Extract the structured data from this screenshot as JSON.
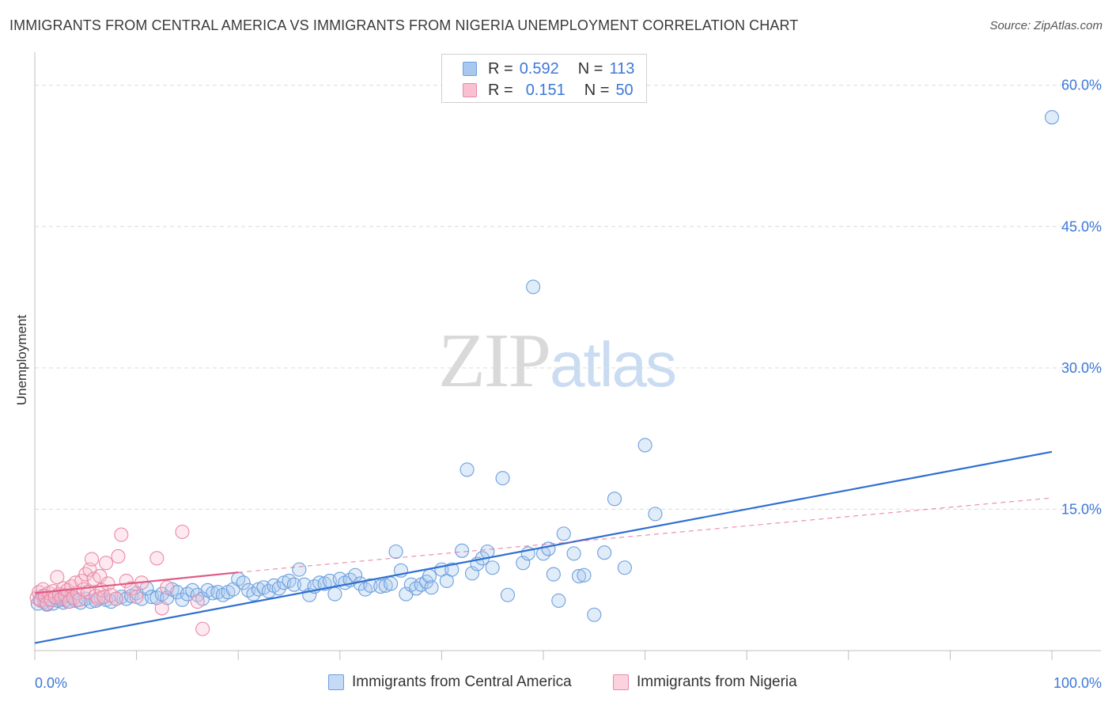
{
  "title": "IMMIGRANTS FROM CENTRAL AMERICA VS IMMIGRANTS FROM NIGERIA UNEMPLOYMENT CORRELATION CHART",
  "source": "Source: ZipAtlas.com",
  "watermark": {
    "zip": "ZIP",
    "atlas": "atlas"
  },
  "legend": {
    "rows": [
      {
        "r_label": "R =",
        "r_value": "0.592",
        "n_label": "N =",
        "n_value": "113",
        "color": "#a8c8ee",
        "border": "#6b9fe0"
      },
      {
        "r_label": "R =",
        "r_value": "0.151",
        "n_label": "N =",
        "n_value": "50",
        "color": "#f8c0d0",
        "border": "#e98aa7"
      }
    ]
  },
  "bottom_legend": [
    {
      "label": "Immigrants from Central America",
      "color": "#c5daf5",
      "border": "#6b9fe0"
    },
    {
      "label": "Immigrants from Nigeria",
      "color": "#fbd3df",
      "border": "#e98aa7"
    }
  ],
  "chart_data": {
    "type": "scatter",
    "title": "IMMIGRANTS FROM CENTRAL AMERICA VS IMMIGRANTS FROM NIGERIA UNEMPLOYMENT CORRELATION CHART",
    "xlabel": "",
    "ylabel": "Unemployment",
    "xlim": [
      0,
      100
    ],
    "ylim": [
      0,
      63
    ],
    "x_tick_labels": [
      "0.0%",
      "100.0%"
    ],
    "y_ticks": [
      15,
      30,
      45,
      60
    ],
    "y_tick_labels": [
      "15.0%",
      "30.0%",
      "45.0%",
      "60.0%"
    ],
    "series": [
      {
        "name": "Immigrants from Central America",
        "color": "#6b9fe0",
        "fill": "rgba(168,200,238,0.35)",
        "trend": {
          "x": [
            0,
            100
          ],
          "y": [
            0.8,
            21.1
          ],
          "color": "#2f6fd1",
          "dashed_extension": false
        },
        "points": [
          [
            0.3,
            5
          ],
          [
            0.5,
            5.4
          ],
          [
            0.8,
            5.8
          ],
          [
            1,
            5.2
          ],
          [
            1.2,
            4.9
          ],
          [
            1.5,
            5.5
          ],
          [
            1.8,
            5
          ],
          [
            2,
            5.6
          ],
          [
            2.3,
            5.3
          ],
          [
            2.5,
            5.8
          ],
          [
            2.8,
            5.1
          ],
          [
            3,
            5.4
          ],
          [
            3.3,
            5.2
          ],
          [
            3.6,
            5.7
          ],
          [
            4,
            5.3
          ],
          [
            4.5,
            5.1
          ],
          [
            5,
            5.5
          ],
          [
            5.5,
            5.2
          ],
          [
            6,
            5.3
          ],
          [
            6.5,
            5.6
          ],
          [
            7,
            5.4
          ],
          [
            7.5,
            5.2
          ],
          [
            8,
            5.5
          ],
          [
            8.5,
            5.7
          ],
          [
            9,
            5.5
          ],
          [
            9.5,
            5.8
          ],
          [
            10,
            6.1
          ],
          [
            10.5,
            5.5
          ],
          [
            11,
            6.6
          ],
          [
            11.5,
            5.7
          ],
          [
            12,
            5.6
          ],
          [
            12.5,
            6
          ],
          [
            13,
            5.6
          ],
          [
            13.5,
            6.5
          ],
          [
            14,
            6.2
          ],
          [
            14.5,
            5.4
          ],
          [
            15,
            6
          ],
          [
            15.5,
            6.4
          ],
          [
            16,
            5.9
          ],
          [
            16.5,
            5.5
          ],
          [
            17,
            6.4
          ],
          [
            17.5,
            6.1
          ],
          [
            18,
            6.2
          ],
          [
            18.5,
            5.9
          ],
          [
            19,
            6.2
          ],
          [
            19.5,
            6.5
          ],
          [
            20,
            7.6
          ],
          [
            20.5,
            7.2
          ],
          [
            21,
            6.4
          ],
          [
            21.5,
            6
          ],
          [
            22,
            6.5
          ],
          [
            22.5,
            6.7
          ],
          [
            23,
            6.3
          ],
          [
            23.5,
            6.9
          ],
          [
            24,
            6.6
          ],
          [
            24.5,
            7.2
          ],
          [
            25,
            7.4
          ],
          [
            25.5,
            7
          ],
          [
            26,
            8.6
          ],
          [
            26.5,
            7
          ],
          [
            27,
            5.9
          ],
          [
            27.5,
            6.8
          ],
          [
            28,
            7.2
          ],
          [
            28.5,
            7.1
          ],
          [
            29,
            7.4
          ],
          [
            29.5,
            6
          ],
          [
            30,
            7.6
          ],
          [
            30.5,
            7.2
          ],
          [
            31,
            7.5
          ],
          [
            31.5,
            8
          ],
          [
            32,
            7.1
          ],
          [
            32.5,
            6.5
          ],
          [
            33,
            6.9
          ],
          [
            34,
            6.8
          ],
          [
            34.5,
            6.9
          ],
          [
            35,
            7.1
          ],
          [
            35.5,
            10.5
          ],
          [
            36,
            8.5
          ],
          [
            36.5,
            6
          ],
          [
            37,
            7
          ],
          [
            37.5,
            6.6
          ],
          [
            38,
            7
          ],
          [
            38.5,
            7.3
          ],
          [
            38.8,
            7.9
          ],
          [
            39,
            6.7
          ],
          [
            40,
            8.6
          ],
          [
            40.5,
            7.4
          ],
          [
            41,
            8.6
          ],
          [
            42,
            10.6
          ],
          [
            42.5,
            19.2
          ],
          [
            43,
            8.2
          ],
          [
            43.5,
            9.2
          ],
          [
            44,
            9.8
          ],
          [
            44.5,
            10.5
          ],
          [
            45,
            8.8
          ],
          [
            46,
            18.3
          ],
          [
            46.5,
            5.9
          ],
          [
            48,
            9.3
          ],
          [
            48.5,
            10.3
          ],
          [
            49,
            38.6
          ],
          [
            50,
            10.3
          ],
          [
            50.5,
            10.8
          ],
          [
            51,
            8.1
          ],
          [
            51.5,
            5.3
          ],
          [
            52,
            12.4
          ],
          [
            53,
            10.3
          ],
          [
            53.5,
            7.9
          ],
          [
            54,
            8
          ],
          [
            55,
            3.8
          ],
          [
            56,
            10.4
          ],
          [
            57,
            16.1
          ],
          [
            58,
            8.8
          ],
          [
            60,
            21.8
          ],
          [
            61,
            14.5
          ],
          [
            100,
            56.6
          ]
        ]
      },
      {
        "name": "Immigrants from Nigeria",
        "color": "#e98aa7",
        "fill": "rgba(248,192,208,0.35)",
        "trend": {
          "x": [
            0,
            20
          ],
          "y": [
            6.1,
            8.3
          ],
          "color": "#e05a85",
          "dashed_extension": true,
          "ext_x": [
            20,
            100
          ],
          "ext_y": [
            8.3,
            16.2
          ]
        },
        "points": [
          [
            0.2,
            5.6
          ],
          [
            0.4,
            6.2
          ],
          [
            0.6,
            5.3
          ],
          [
            0.8,
            6.5
          ],
          [
            1,
            5.8
          ],
          [
            1.2,
            5
          ],
          [
            1.4,
            6.1
          ],
          [
            1.6,
            5.4
          ],
          [
            1.8,
            6.3
          ],
          [
            2,
            5.7
          ],
          [
            2.2,
            7.8
          ],
          [
            2.4,
            6
          ],
          [
            2.6,
            5.5
          ],
          [
            2.8,
            6.6
          ],
          [
            3,
            5.9
          ],
          [
            3.2,
            6.4
          ],
          [
            3.4,
            5.2
          ],
          [
            3.6,
            6.8
          ],
          [
            3.8,
            5.6
          ],
          [
            4,
            7.2
          ],
          [
            4.2,
            6.1
          ],
          [
            4.4,
            5.4
          ],
          [
            4.6,
            7.4
          ],
          [
            4.8,
            6.5
          ],
          [
            5,
            8.1
          ],
          [
            5.2,
            6.2
          ],
          [
            5.4,
            8.6
          ],
          [
            5.6,
            9.7
          ],
          [
            5.8,
            7.6
          ],
          [
            6,
            5.8
          ],
          [
            6.2,
            5.5
          ],
          [
            6.4,
            7.9
          ],
          [
            6.6,
            6.4
          ],
          [
            6.8,
            5.7
          ],
          [
            7,
            9.3
          ],
          [
            7.2,
            7.1
          ],
          [
            7.5,
            5.9
          ],
          [
            8,
            5.5
          ],
          [
            8.2,
            10
          ],
          [
            8.5,
            12.3
          ],
          [
            9,
            7.4
          ],
          [
            9.5,
            6.6
          ],
          [
            10,
            5.7
          ],
          [
            10.5,
            7.2
          ],
          [
            12,
            9.8
          ],
          [
            13,
            6.7
          ],
          [
            14.5,
            12.6
          ],
          [
            16,
            5.2
          ],
          [
            16.5,
            2.3
          ],
          [
            12.5,
            4.5
          ]
        ]
      }
    ]
  }
}
